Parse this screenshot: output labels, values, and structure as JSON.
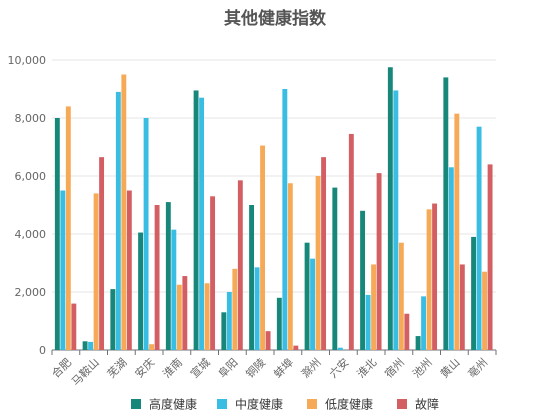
{
  "chart_data": {
    "type": "bar",
    "title": "其他健康指数",
    "xlabel": "",
    "ylabel": "",
    "ylim": [
      0,
      10000
    ],
    "yticks": [
      "0",
      "2,000",
      "4,000",
      "6,000",
      "8,000",
      "10,000"
    ],
    "ytick_values": [
      0,
      2000,
      4000,
      6000,
      8000,
      10000
    ],
    "grid": true,
    "legend_position": "bottom",
    "categories": [
      "合肥",
      "马鞍山",
      "芜湖",
      "安庆",
      "淮南",
      "宣城",
      "阜阳",
      "铜陵",
      "蚌埠",
      "滁州",
      "六安",
      "淮北",
      "宿州",
      "池州",
      "黄山",
      "亳州"
    ],
    "series": [
      {
        "name": "高度健康",
        "color": "#17877a",
        "values": [
          8000,
          300,
          2100,
          4050,
          5100,
          8950,
          1300,
          5000,
          1800,
          3700,
          5600,
          4800,
          9750,
          480,
          9400,
          3900
        ]
      },
      {
        "name": "中度健康",
        "color": "#39bde3",
        "values": [
          5500,
          280,
          8900,
          8000,
          4150,
          8700,
          2000,
          2850,
          9000,
          3150,
          80,
          1900,
          8950,
          1850,
          6300,
          7700
        ]
      },
      {
        "name": "低度健康",
        "color": "#f6a956",
        "values": [
          8400,
          5400,
          9500,
          200,
          2250,
          2300,
          2800,
          7050,
          5750,
          6000,
          0,
          2950,
          3700,
          4850,
          8150,
          2700
        ]
      },
      {
        "name": "故障",
        "color": "#d35f63",
        "values": [
          1600,
          6650,
          5500,
          5000,
          2550,
          5300,
          5850,
          650,
          150,
          6650,
          7450,
          6100,
          1250,
          5050,
          2950,
          6400
        ]
      }
    ]
  }
}
